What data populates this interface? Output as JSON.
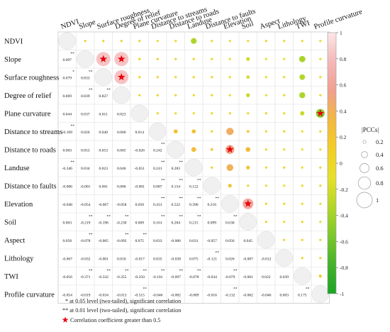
{
  "chart_data": {
    "type": "heatmap",
    "title": "",
    "variables": [
      "NDVI",
      "Slope",
      "Surface roughness",
      "Degree of relief",
      "Plane curvature",
      "Distance to streams",
      "Distance to roads",
      "Landuse",
      "Distance to faults",
      "Elevation",
      "Soil",
      "Aspect",
      "Lithology",
      "TWI",
      "Profile curvature"
    ],
    "lower_values": [
      [
        "",
        "",
        "",
        "",
        "",
        "",
        "",
        "",
        "",
        "",
        "",
        "",
        "",
        ""
      ],
      [
        "0.097",
        "",
        "",
        "",
        "",
        "",
        "",
        "",
        "",
        "",
        "",
        "",
        "",
        ""
      ],
      [
        "0.079",
        "0.833",
        "",
        "",
        "",
        "",
        "",
        "",
        "",
        "",
        "",
        "",
        "",
        ""
      ],
      [
        "0.069",
        "0.839",
        "0.827",
        "",
        "",
        "",
        "",
        "",
        "",
        "",
        "",
        "",
        "",
        ""
      ],
      [
        "0.044",
        "0.037",
        "0.011",
        "0.023",
        "",
        "",
        "",
        "",
        "",
        "",
        "",
        "",
        "",
        ""
      ],
      [
        "-0.109",
        "0.026",
        "0.040",
        "0.060",
        "0.014",
        "",
        "",
        "",
        "",
        "",
        "",
        "",
        "",
        ""
      ],
      [
        "0.003",
        "0.053",
        "0.053",
        "0.065",
        "-0.026",
        "0.242",
        "",
        "",
        "",
        "",
        "",
        "",
        "",
        ""
      ],
      [
        "-0.346",
        "0.034",
        "0.023",
        "0.046",
        "-0.051",
        "0.241",
        "0.283",
        "",
        "",
        "",
        "",
        "",
        "",
        ""
      ],
      [
        "-0.006",
        "-0.001",
        "0.001",
        "0.006",
        "-0.001",
        "0.087",
        "0.154",
        "0.122",
        "",
        "",
        "",
        "",
        "",
        ""
      ],
      [
        "-0.048",
        "-0.054",
        "-0.067",
        "-0.058",
        "0.050",
        "0.431",
        "0.522",
        "0.396",
        "0.216",
        "",
        "",
        "",
        "",
        ""
      ],
      [
        "0.003",
        "-0.219",
        "-0.196",
        "-0.230",
        "0.009",
        "0.161",
        "0.284",
        "0.215",
        "0.099",
        "0.630",
        "",
        "",
        "",
        ""
      ],
      [
        "0.058",
        "-0.078",
        "-0.065",
        "-0.092",
        "0.075",
        "0.033",
        "-0.006",
        "0.031",
        "-0.057",
        "0.056",
        "0.045",
        "",
        "",
        ""
      ],
      [
        "-0.067",
        "-0.032",
        "-0.001",
        "0.010",
        "-0.017",
        "0.035",
        "-0.038",
        "0.075",
        "-0.121",
        "0.026",
        "-0.007",
        "-0.012",
        "",
        ""
      ],
      [
        "-0.056",
        "-0.371",
        "-0.332",
        "-0.355",
        "-0.250",
        "-0.101",
        "-0.097",
        "-0.078",
        "-0.034",
        "-0.079",
        "-0.001",
        "0.022",
        "0.039",
        ""
      ],
      [
        "-0.054",
        "-0.019",
        "-0.034",
        "-0.013",
        "-0.515",
        "-0.046",
        "-0.082",
        "-0.009",
        "-0.016",
        "-0.132",
        "-0.062",
        "-0.046",
        "0.003",
        "0.175"
      ]
    ],
    "significance": {
      "single_star": [
        [
          2,
          0
        ]
      ],
      "double_star": [
        [
          1,
          0
        ],
        [
          2,
          1
        ],
        [
          3,
          1
        ],
        [
          3,
          2
        ],
        [
          5,
          0
        ],
        [
          6,
          5
        ],
        [
          7,
          0
        ],
        [
          7,
          5
        ],
        [
          7,
          6
        ],
        [
          8,
          5
        ],
        [
          8,
          6
        ],
        [
          8,
          7
        ],
        [
          9,
          5
        ],
        [
          9,
          6
        ],
        [
          9,
          7
        ],
        [
          9,
          8
        ],
        [
          10,
          1
        ],
        [
          10,
          2
        ],
        [
          10,
          3
        ],
        [
          10,
          5
        ],
        [
          10,
          6
        ],
        [
          10,
          7
        ],
        [
          10,
          9
        ],
        [
          11,
          1
        ],
        [
          11,
          3
        ],
        [
          11,
          4
        ],
        [
          12,
          8
        ],
        [
          13,
          1
        ],
        [
          13,
          2
        ],
        [
          13,
          3
        ],
        [
          13,
          4
        ],
        [
          13,
          5
        ],
        [
          13,
          6
        ],
        [
          13,
          7
        ],
        [
          13,
          9
        ],
        [
          14,
          4
        ],
        [
          14,
          9
        ],
        [
          14,
          13
        ]
      ]
    },
    "strong_markers": [
      [
        1,
        2
      ],
      [
        1,
        3
      ],
      [
        2,
        3
      ],
      [
        4,
        14
      ],
      [
        6,
        9
      ],
      [
        9,
        10
      ]
    ],
    "colorbar": {
      "ticks": [
        "1",
        "0.8",
        "0.6",
        "0.4",
        "0.2",
        "0",
        "-0.2",
        "-0.4",
        "-0.6",
        "-0.8",
        "-1"
      ],
      "colors": [
        "#fce7e7",
        "#f4b8b8",
        "#efa090",
        "#f2b840",
        "#f2cd28",
        "#e6e02a",
        "#b3d629",
        "#7cc72c",
        "#43b22b",
        "#1ea326"
      ]
    },
    "size_legend": {
      "title": "|PCCs|",
      "values": [
        "0.2",
        "0.4",
        "0.6",
        "0.8",
        "1"
      ]
    },
    "footnotes": {
      "single_star": "* at 0.05 level (two-tailed), significant correlation",
      "double_star": "** at 0.01 level (two-tailed), significant correlation",
      "strong": "Correlation coefficient greater than 0.5"
    }
  }
}
